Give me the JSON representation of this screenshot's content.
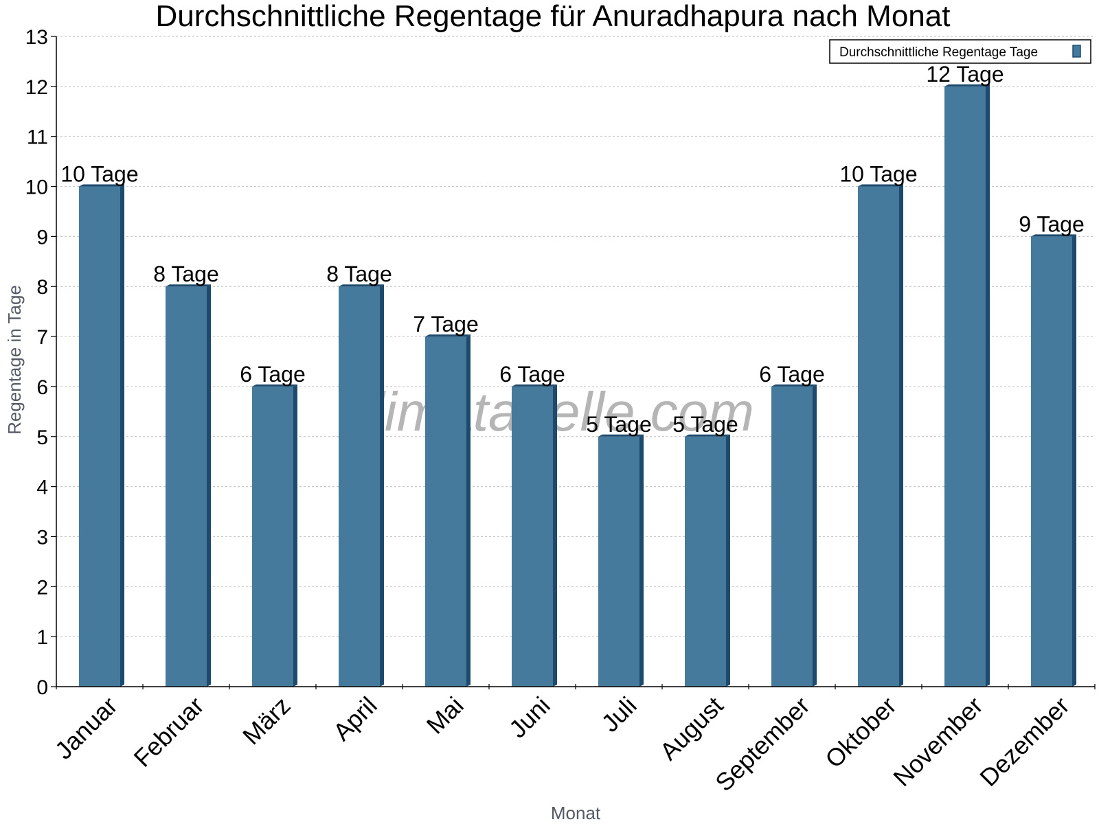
{
  "chart_data": {
    "type": "bar",
    "title": "Durchschnittliche Regentage für Anuradhapura nach Monat",
    "xlabel": "Monat",
    "ylabel": "Regentage in Tage",
    "categories": [
      "Januar",
      "Februar",
      "März",
      "April",
      "Mai",
      "Juni",
      "Juli",
      "August",
      "September",
      "Oktober",
      "November",
      "Dezember"
    ],
    "series": [
      {
        "name": "Durchschnittliche Regentage Tage",
        "values": [
          10,
          8,
          6,
          8,
          7,
          6,
          5,
          5,
          6,
          10,
          12,
          9
        ],
        "labels": [
          "10 Tage",
          "8 Tage",
          "6 Tage",
          "8 Tage",
          "7 Tage",
          "6 Tage",
          "5 Tage",
          "5 Tage",
          "6 Tage",
          "10 Tage",
          "12 Tage",
          "9 Tage"
        ]
      }
    ],
    "ylim": [
      0,
      13
    ],
    "yticks": [
      0,
      1,
      2,
      3,
      4,
      5,
      6,
      7,
      8,
      9,
      10,
      11,
      12,
      13
    ],
    "grid": true,
    "legend_position": "top-right",
    "watermark": "klimatabelle.com",
    "colors": {
      "bar": "#467a9c",
      "bar_dark": "#1d4a6c",
      "grid": "#c8c8c8"
    }
  }
}
